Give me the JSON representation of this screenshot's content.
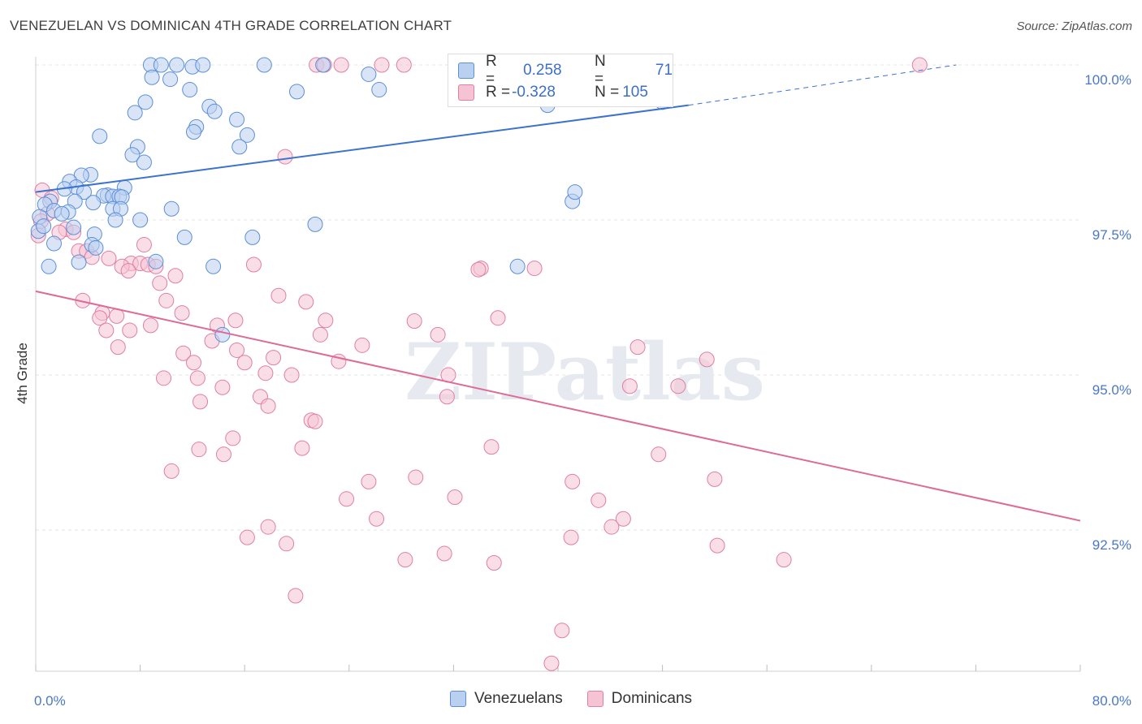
{
  "title": "VENEZUELAN VS DOMINICAN 4TH GRADE CORRELATION CHART",
  "source": "Source: ZipAtlas.com",
  "watermark": "ZIPatlas",
  "legend_top": {
    "rows": [
      {
        "r_label": "R =",
        "r_value": "0.258",
        "n_label": "N =",
        "n_value": "71",
        "color": "#5b8fd8",
        "fill": "#b9d0f1"
      },
      {
        "r_label": "R =",
        "r_value": "-0.328",
        "n_label": "N =",
        "n_value": "105",
        "color": "#e07fa2",
        "fill": "#f6c3d4"
      }
    ]
  },
  "legend_bottom": [
    {
      "label": "Venezuelans",
      "color": "#5b8fd8",
      "fill": "#b9d0f1"
    },
    {
      "label": "Dominicans",
      "color": "#e07fa2",
      "fill": "#f6c3d4"
    }
  ],
  "chart_data": {
    "type": "scatter",
    "title": "VENEZUELAN VS DOMINICAN 4TH GRADE CORRELATION CHART",
    "xlabel": "",
    "ylabel": "4th Grade",
    "xlim": [
      0,
      80
    ],
    "ylim": [
      90.2,
      100.4
    ],
    "x_tick_labels": [
      "0.0%",
      "80.0%"
    ],
    "y_ticks": [
      92.5,
      95.0,
      97.5,
      100.0
    ],
    "y_tick_labels": [
      "92.5%",
      "95.0%",
      "97.5%",
      "100.0%"
    ],
    "grid": true,
    "legend_placement": "top-center",
    "series": [
      {
        "name": "Venezuelans",
        "color": "#5b8fd8",
        "fill": "#b9d0f1",
        "trend": {
          "x0": 0,
          "y0": 97.95,
          "x1": 50,
          "y1": 99.35,
          "dashed_to_x": 70.5,
          "dashed_to_y": 100.0
        },
        "points": [
          [
            8.8,
            100.0
          ],
          [
            9.6,
            100.0
          ],
          [
            10.8,
            100.0
          ],
          [
            12.0,
            99.97
          ],
          [
            12.8,
            100.0
          ],
          [
            17.5,
            100.0
          ],
          [
            22.0,
            100.0
          ],
          [
            25.5,
            99.85
          ],
          [
            8.9,
            99.8
          ],
          [
            10.3,
            99.77
          ],
          [
            11.8,
            99.6
          ],
          [
            20.0,
            99.57
          ],
          [
            8.4,
            99.4
          ],
          [
            13.3,
            99.33
          ],
          [
            13.7,
            99.25
          ],
          [
            7.6,
            99.23
          ],
          [
            15.4,
            99.12
          ],
          [
            12.3,
            99.0
          ],
          [
            12.1,
            98.92
          ],
          [
            16.2,
            98.87
          ],
          [
            4.9,
            98.85
          ],
          [
            15.6,
            98.68
          ],
          [
            7.8,
            98.68
          ],
          [
            7.4,
            98.55
          ],
          [
            8.3,
            98.43
          ],
          [
            4.2,
            98.23
          ],
          [
            3.5,
            98.22
          ],
          [
            2.6,
            98.12
          ],
          [
            3.1,
            98.03
          ],
          [
            6.8,
            98.02
          ],
          [
            2.2,
            98.0
          ],
          [
            3.7,
            97.95
          ],
          [
            5.5,
            97.9
          ],
          [
            5.2,
            97.89
          ],
          [
            5.9,
            97.88
          ],
          [
            6.4,
            97.88
          ],
          [
            6.6,
            97.87
          ],
          [
            1.1,
            97.8
          ],
          [
            3.0,
            97.8
          ],
          [
            0.7,
            97.75
          ],
          [
            4.4,
            97.78
          ],
          [
            5.9,
            97.68
          ],
          [
            6.5,
            97.68
          ],
          [
            10.4,
            97.68
          ],
          [
            1.4,
            97.65
          ],
          [
            2.5,
            97.63
          ],
          [
            2.0,
            97.6
          ],
          [
            0.3,
            97.55
          ],
          [
            6.1,
            97.5
          ],
          [
            8.0,
            97.5
          ],
          [
            21.4,
            97.43
          ],
          [
            2.9,
            97.38
          ],
          [
            4.5,
            97.27
          ],
          [
            11.4,
            97.22
          ],
          [
            16.6,
            97.22
          ],
          [
            1.4,
            97.12
          ],
          [
            4.3,
            97.1
          ],
          [
            4.6,
            97.05
          ],
          [
            9.2,
            96.83
          ],
          [
            3.3,
            96.82
          ],
          [
            13.6,
            96.75
          ],
          [
            36.9,
            96.75
          ],
          [
            1.0,
            96.75
          ],
          [
            0.2,
            97.32
          ],
          [
            0.6,
            97.4
          ],
          [
            14.3,
            95.65
          ],
          [
            41.1,
            97.8
          ],
          [
            41.3,
            97.95
          ],
          [
            26.3,
            99.6
          ],
          [
            39.2,
            99.35
          ],
          [
            48.0,
            99.4
          ]
        ]
      },
      {
        "name": "Dominicans",
        "color": "#e07fa2",
        "fill": "#f6c3d4",
        "trend": {
          "x0": 0,
          "y0": 96.35,
          "x1": 80,
          "y1": 92.65
        },
        "points": [
          [
            21.5,
            100.0
          ],
          [
            22.1,
            100.0
          ],
          [
            23.4,
            100.0
          ],
          [
            26.5,
            100.0
          ],
          [
            28.2,
            100.0
          ],
          [
            32.7,
            100.0
          ],
          [
            67.7,
            100.0
          ],
          [
            19.1,
            98.52
          ],
          [
            0.5,
            97.98
          ],
          [
            1.2,
            97.85
          ],
          [
            0.9,
            97.6
          ],
          [
            2.3,
            97.35
          ],
          [
            1.8,
            97.3
          ],
          [
            2.9,
            97.3
          ],
          [
            8.3,
            97.1
          ],
          [
            3.3,
            97.0
          ],
          [
            3.9,
            97.0
          ],
          [
            4.3,
            96.9
          ],
          [
            5.6,
            96.88
          ],
          [
            7.3,
            96.8
          ],
          [
            8.0,
            96.8
          ],
          [
            6.6,
            96.75
          ],
          [
            7.1,
            96.68
          ],
          [
            8.6,
            96.78
          ],
          [
            9.2,
            96.75
          ],
          [
            16.7,
            96.78
          ],
          [
            34.1,
            96.72
          ],
          [
            33.9,
            96.7
          ],
          [
            38.2,
            96.72
          ],
          [
            10.7,
            96.6
          ],
          [
            9.5,
            96.48
          ],
          [
            18.6,
            96.28
          ],
          [
            20.7,
            96.18
          ],
          [
            10.0,
            96.2
          ],
          [
            3.6,
            96.2
          ],
          [
            11.2,
            96.0
          ],
          [
            5.1,
            96.0
          ],
          [
            4.9,
            95.92
          ],
          [
            6.2,
            95.95
          ],
          [
            15.3,
            95.88
          ],
          [
            22.2,
            95.88
          ],
          [
            29.0,
            95.87
          ],
          [
            35.4,
            95.92
          ],
          [
            8.8,
            95.8
          ],
          [
            13.9,
            95.8
          ],
          [
            5.4,
            95.72
          ],
          [
            7.2,
            95.72
          ],
          [
            21.8,
            95.65
          ],
          [
            30.8,
            95.65
          ],
          [
            13.5,
            95.55
          ],
          [
            6.3,
            95.45
          ],
          [
            25.0,
            95.48
          ],
          [
            46.1,
            95.45
          ],
          [
            11.3,
            95.35
          ],
          [
            15.4,
            95.4
          ],
          [
            18.2,
            95.28
          ],
          [
            12.1,
            95.2
          ],
          [
            16.0,
            95.2
          ],
          [
            23.2,
            95.22
          ],
          [
            51.4,
            95.25
          ],
          [
            9.8,
            94.95
          ],
          [
            12.4,
            94.95
          ],
          [
            17.6,
            95.03
          ],
          [
            19.6,
            95.0
          ],
          [
            31.6,
            95.0
          ],
          [
            14.3,
            94.8
          ],
          [
            45.5,
            94.82
          ],
          [
            49.2,
            94.82
          ],
          [
            17.2,
            94.65
          ],
          [
            31.5,
            94.65
          ],
          [
            12.6,
            94.57
          ],
          [
            17.8,
            94.5
          ],
          [
            21.1,
            94.27
          ],
          [
            21.4,
            94.25
          ],
          [
            15.1,
            93.98
          ],
          [
            12.5,
            93.8
          ],
          [
            14.4,
            93.72
          ],
          [
            20.4,
            93.82
          ],
          [
            34.9,
            93.84
          ],
          [
            47.7,
            93.72
          ],
          [
            10.4,
            93.45
          ],
          [
            25.5,
            93.28
          ],
          [
            29.1,
            93.35
          ],
          [
            41.1,
            93.28
          ],
          [
            52.0,
            93.32
          ],
          [
            23.8,
            93.0
          ],
          [
            32.1,
            93.03
          ],
          [
            43.1,
            92.98
          ],
          [
            26.1,
            92.68
          ],
          [
            17.8,
            92.55
          ],
          [
            45.0,
            92.68
          ],
          [
            44.1,
            92.55
          ],
          [
            16.2,
            92.38
          ],
          [
            19.2,
            92.28
          ],
          [
            41.0,
            92.38
          ],
          [
            52.2,
            92.25
          ],
          [
            28.3,
            92.02
          ],
          [
            31.3,
            92.12
          ],
          [
            35.1,
            91.97
          ],
          [
            57.3,
            92.02
          ],
          [
            19.9,
            91.44
          ],
          [
            40.3,
            90.88
          ],
          [
            39.5,
            90.35
          ],
          [
            0.2,
            97.25
          ],
          [
            0.4,
            97.48
          ]
        ]
      }
    ]
  }
}
